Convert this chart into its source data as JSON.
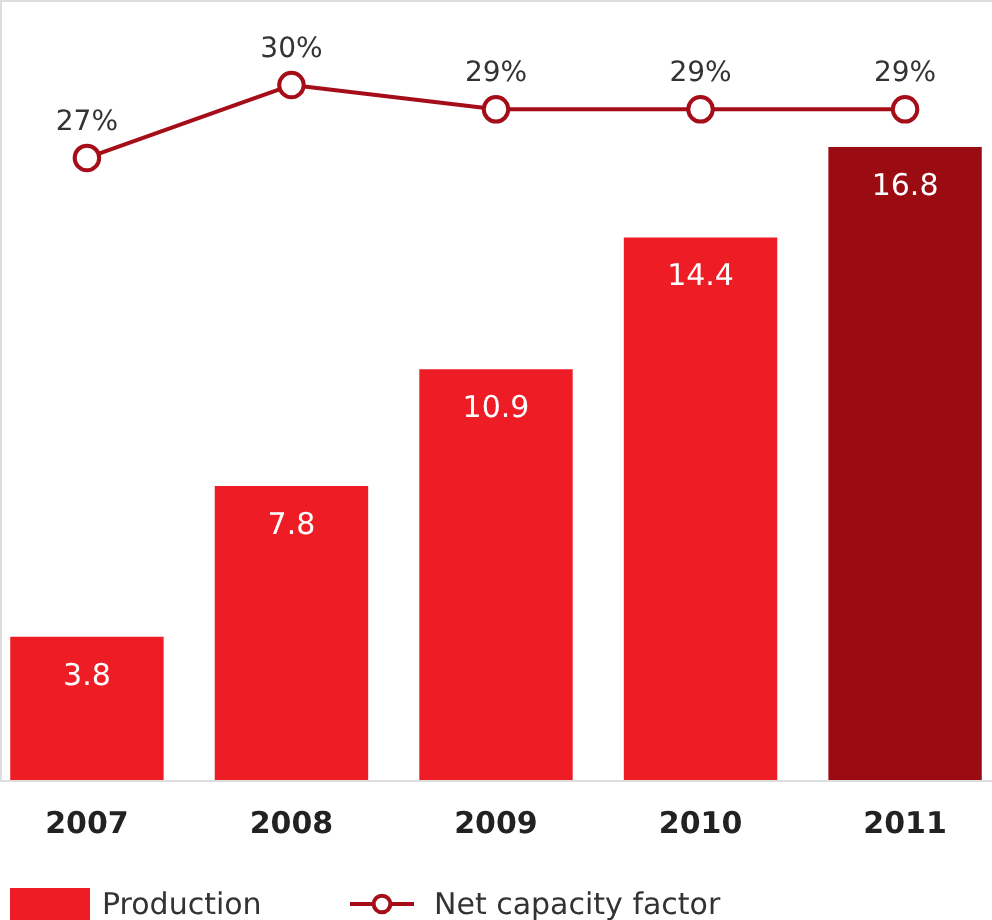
{
  "chart_data": {
    "type": "bar",
    "categories": [
      "2007",
      "2008",
      "2009",
      "2010",
      "2011"
    ],
    "series": [
      {
        "name": "Production",
        "color": "#ee1c25",
        "colors": [
          "#ee1c25",
          "#ee1c25",
          "#ee1c25",
          "#ee1c25",
          "#9b0b12"
        ],
        "values": [
          3.8,
          7.8,
          10.9,
          14.4,
          16.8
        ]
      },
      {
        "name": "Net capacity factor",
        "type": "line",
        "axis": "y2",
        "color": "#a50d18",
        "values": [
          27,
          30,
          29,
          29,
          29
        ],
        "value_labels": [
          "27%",
          "30%",
          "29%",
          "29%",
          "29%"
        ]
      }
    ],
    "ylim": [
      0,
      20.7
    ],
    "y2lim": [
      1.4,
      33.5
    ],
    "data_labels": true,
    "marker": "circle",
    "legend": "bottom left",
    "tick_labels": "x",
    "grid": false
  }
}
